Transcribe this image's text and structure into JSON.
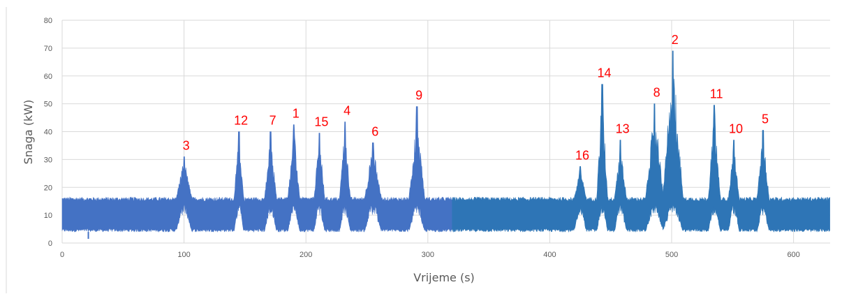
{
  "chart_data": {
    "type": "area",
    "xlabel": "Vrijeme (s)",
    "ylabel": "Snaga (kW)",
    "xlim": [
      0,
      630
    ],
    "ylim": [
      0,
      80
    ],
    "x_ticks": [
      0,
      100,
      200,
      300,
      400,
      500,
      600
    ],
    "y_ticks": [
      0,
      10,
      20,
      30,
      40,
      50,
      60,
      70,
      80
    ],
    "grid": true,
    "legend": "none",
    "baseline_band_kw": [
      4,
      16
    ],
    "colors": {
      "series_a": "#4472c4",
      "series_b": "#2e75b6",
      "annotation": "#ff0000"
    },
    "series": [
      {
        "x_range": [
          0,
          320
        ],
        "color": "series_a"
      },
      {
        "x_range": [
          320,
          630
        ],
        "color": "series_b"
      }
    ],
    "peaks": [
      {
        "label": "1",
        "x": 190,
        "y": 42.5,
        "width": 7
      },
      {
        "label": "2",
        "x": 501,
        "y": 69,
        "width": 14
      },
      {
        "label": "3",
        "x": 100,
        "y": 31,
        "width": 10
      },
      {
        "label": "4",
        "x": 232,
        "y": 43.5,
        "width": 6
      },
      {
        "label": "5",
        "x": 575,
        "y": 40.5,
        "width": 7
      },
      {
        "label": "6",
        "x": 255,
        "y": 36,
        "width": 11
      },
      {
        "label": "7",
        "x": 171,
        "y": 40,
        "width": 7
      },
      {
        "label": "8",
        "x": 486,
        "y": 50,
        "width": 12
      },
      {
        "label": "9",
        "x": 291,
        "y": 49,
        "width": 10
      },
      {
        "label": "10",
        "x": 551,
        "y": 37,
        "width": 6
      },
      {
        "label": "11",
        "x": 535,
        "y": 49.5,
        "width": 7
      },
      {
        "label": "12",
        "x": 145,
        "y": 40,
        "width": 5
      },
      {
        "label": "13",
        "x": 458,
        "y": 37,
        "width": 7
      },
      {
        "label": "14",
        "x": 443,
        "y": 57,
        "width": 6
      },
      {
        "label": "15",
        "x": 211,
        "y": 39.5,
        "width": 6
      },
      {
        "label": "16",
        "x": 425,
        "y": 27.5,
        "width": 7
      }
    ]
  }
}
